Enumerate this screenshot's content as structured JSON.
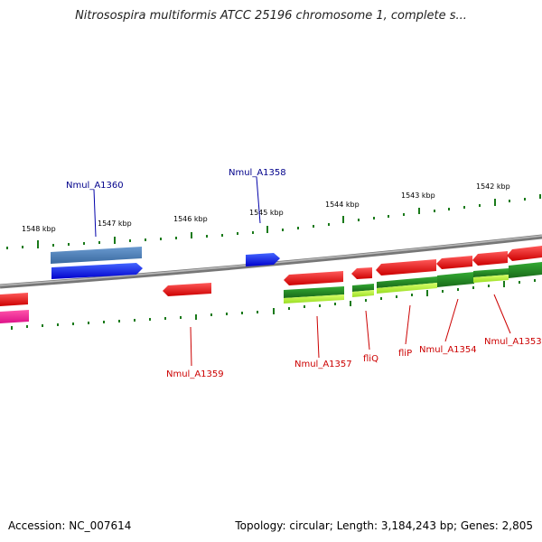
{
  "title": "Nitrosospira multiformis ATCC 25196 chromosome 1, complete s...",
  "footer": {
    "accession": "Accession: NC_007614",
    "summary": "Topology: circular; Length: 3,184,243 bp; Genes: 2,805"
  },
  "ruler_labels": [
    "1548 kbp",
    "1547 kbp",
    "1546 kbp",
    "1545 kbp",
    "1544 kbp",
    "1543 kbp",
    "1542 kbp"
  ],
  "gene_labels_top": [
    "Nmul_A1360",
    "Nmul_A1358"
  ],
  "gene_labels_bottom": [
    "Nmul_A1359",
    "Nmul_A1357",
    "fliQ",
    "fliP",
    "Nmul_A1354",
    "Nmul_A1353"
  ],
  "colors": {
    "forward_gene": "#0000ee",
    "forward_gene_light": "#4682b4",
    "reverse_gene": "#ee0000",
    "green_gene": "#228b22",
    "lime_gene": "#adff2f",
    "magenta_gene": "#ee1493",
    "backbone": "#808080",
    "ruler": "#1a7a1a",
    "label_blue": "#00008b",
    "label_red": "#cc0000"
  }
}
